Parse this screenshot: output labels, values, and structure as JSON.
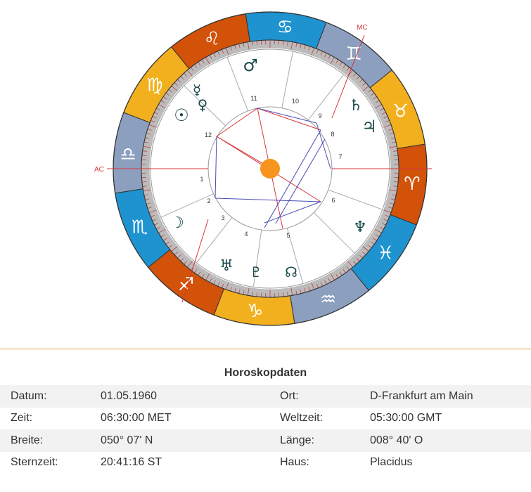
{
  "chart": {
    "angles": {
      "ac": "AC",
      "mc": "MC"
    },
    "zodiac": [
      {
        "sign": "aries",
        "glyph": "♈",
        "color": "#d2520a"
      },
      {
        "sign": "taurus",
        "glyph": "♉",
        "color": "#f2b01e"
      },
      {
        "sign": "gemini",
        "glyph": "♊",
        "color": "#8c9fbf"
      },
      {
        "sign": "cancer",
        "glyph": "♋",
        "color": "#1e93cf"
      },
      {
        "sign": "leo",
        "glyph": "♌",
        "color": "#d2520a"
      },
      {
        "sign": "virgo",
        "glyph": "♍",
        "color": "#f2b01e"
      },
      {
        "sign": "libra",
        "glyph": "♎",
        "color": "#8c9fbf"
      },
      {
        "sign": "scorpio",
        "glyph": "♏",
        "color": "#1e93cf"
      },
      {
        "sign": "sagittarius",
        "glyph": "♐",
        "color": "#d2520a"
      },
      {
        "sign": "capricorn",
        "glyph": "♑",
        "color": "#f2b01e"
      },
      {
        "sign": "aquarius",
        "glyph": "♒",
        "color": "#8c9fbf"
      },
      {
        "sign": "pisces",
        "glyph": "♓",
        "color": "#1e93cf"
      }
    ],
    "houses": [
      "1",
      "2",
      "3",
      "4",
      "5",
      "6",
      "7",
      "8",
      "9",
      "10",
      "11",
      "12"
    ],
    "planets": [
      {
        "name": "sun",
        "glyph": "☉"
      },
      {
        "name": "moon",
        "glyph": "☽"
      },
      {
        "name": "mercury",
        "glyph": "☿"
      },
      {
        "name": "venus",
        "glyph": "♀"
      },
      {
        "name": "mars",
        "glyph": "♂"
      },
      {
        "name": "jupiter",
        "glyph": "♃"
      },
      {
        "name": "saturn",
        "glyph": "♄"
      },
      {
        "name": "uranus",
        "glyph": "♅"
      },
      {
        "name": "neptune",
        "glyph": "♆"
      },
      {
        "name": "pluto",
        "glyph": "♇"
      },
      {
        "name": "node",
        "glyph": "☊"
      }
    ],
    "colors": {
      "hard_aspect": "#d9343a",
      "soft_aspect": "#4a4ab5",
      "center_dot": "#f7941d",
      "accent_line": "#e8a33b"
    }
  },
  "table": {
    "title": "Horoskopdaten",
    "rows": [
      {
        "l1": "Datum:",
        "v1": "01.05.1960",
        "l2": "Ort:",
        "v2": "D-Frankfurt am Main"
      },
      {
        "l1": "Zeit:",
        "v1": "06:30:00 MET",
        "l2": "Weltzeit:",
        "v2": "05:30:00 GMT"
      },
      {
        "l1": "Breite:",
        "v1": "050° 07' N",
        "l2": "Länge:",
        "v2": "008° 40' O"
      },
      {
        "l1": "Sternzeit:",
        "v1": "20:41:16 ST",
        "l2": "Haus:",
        "v2": "Placidus"
      }
    ]
  }
}
